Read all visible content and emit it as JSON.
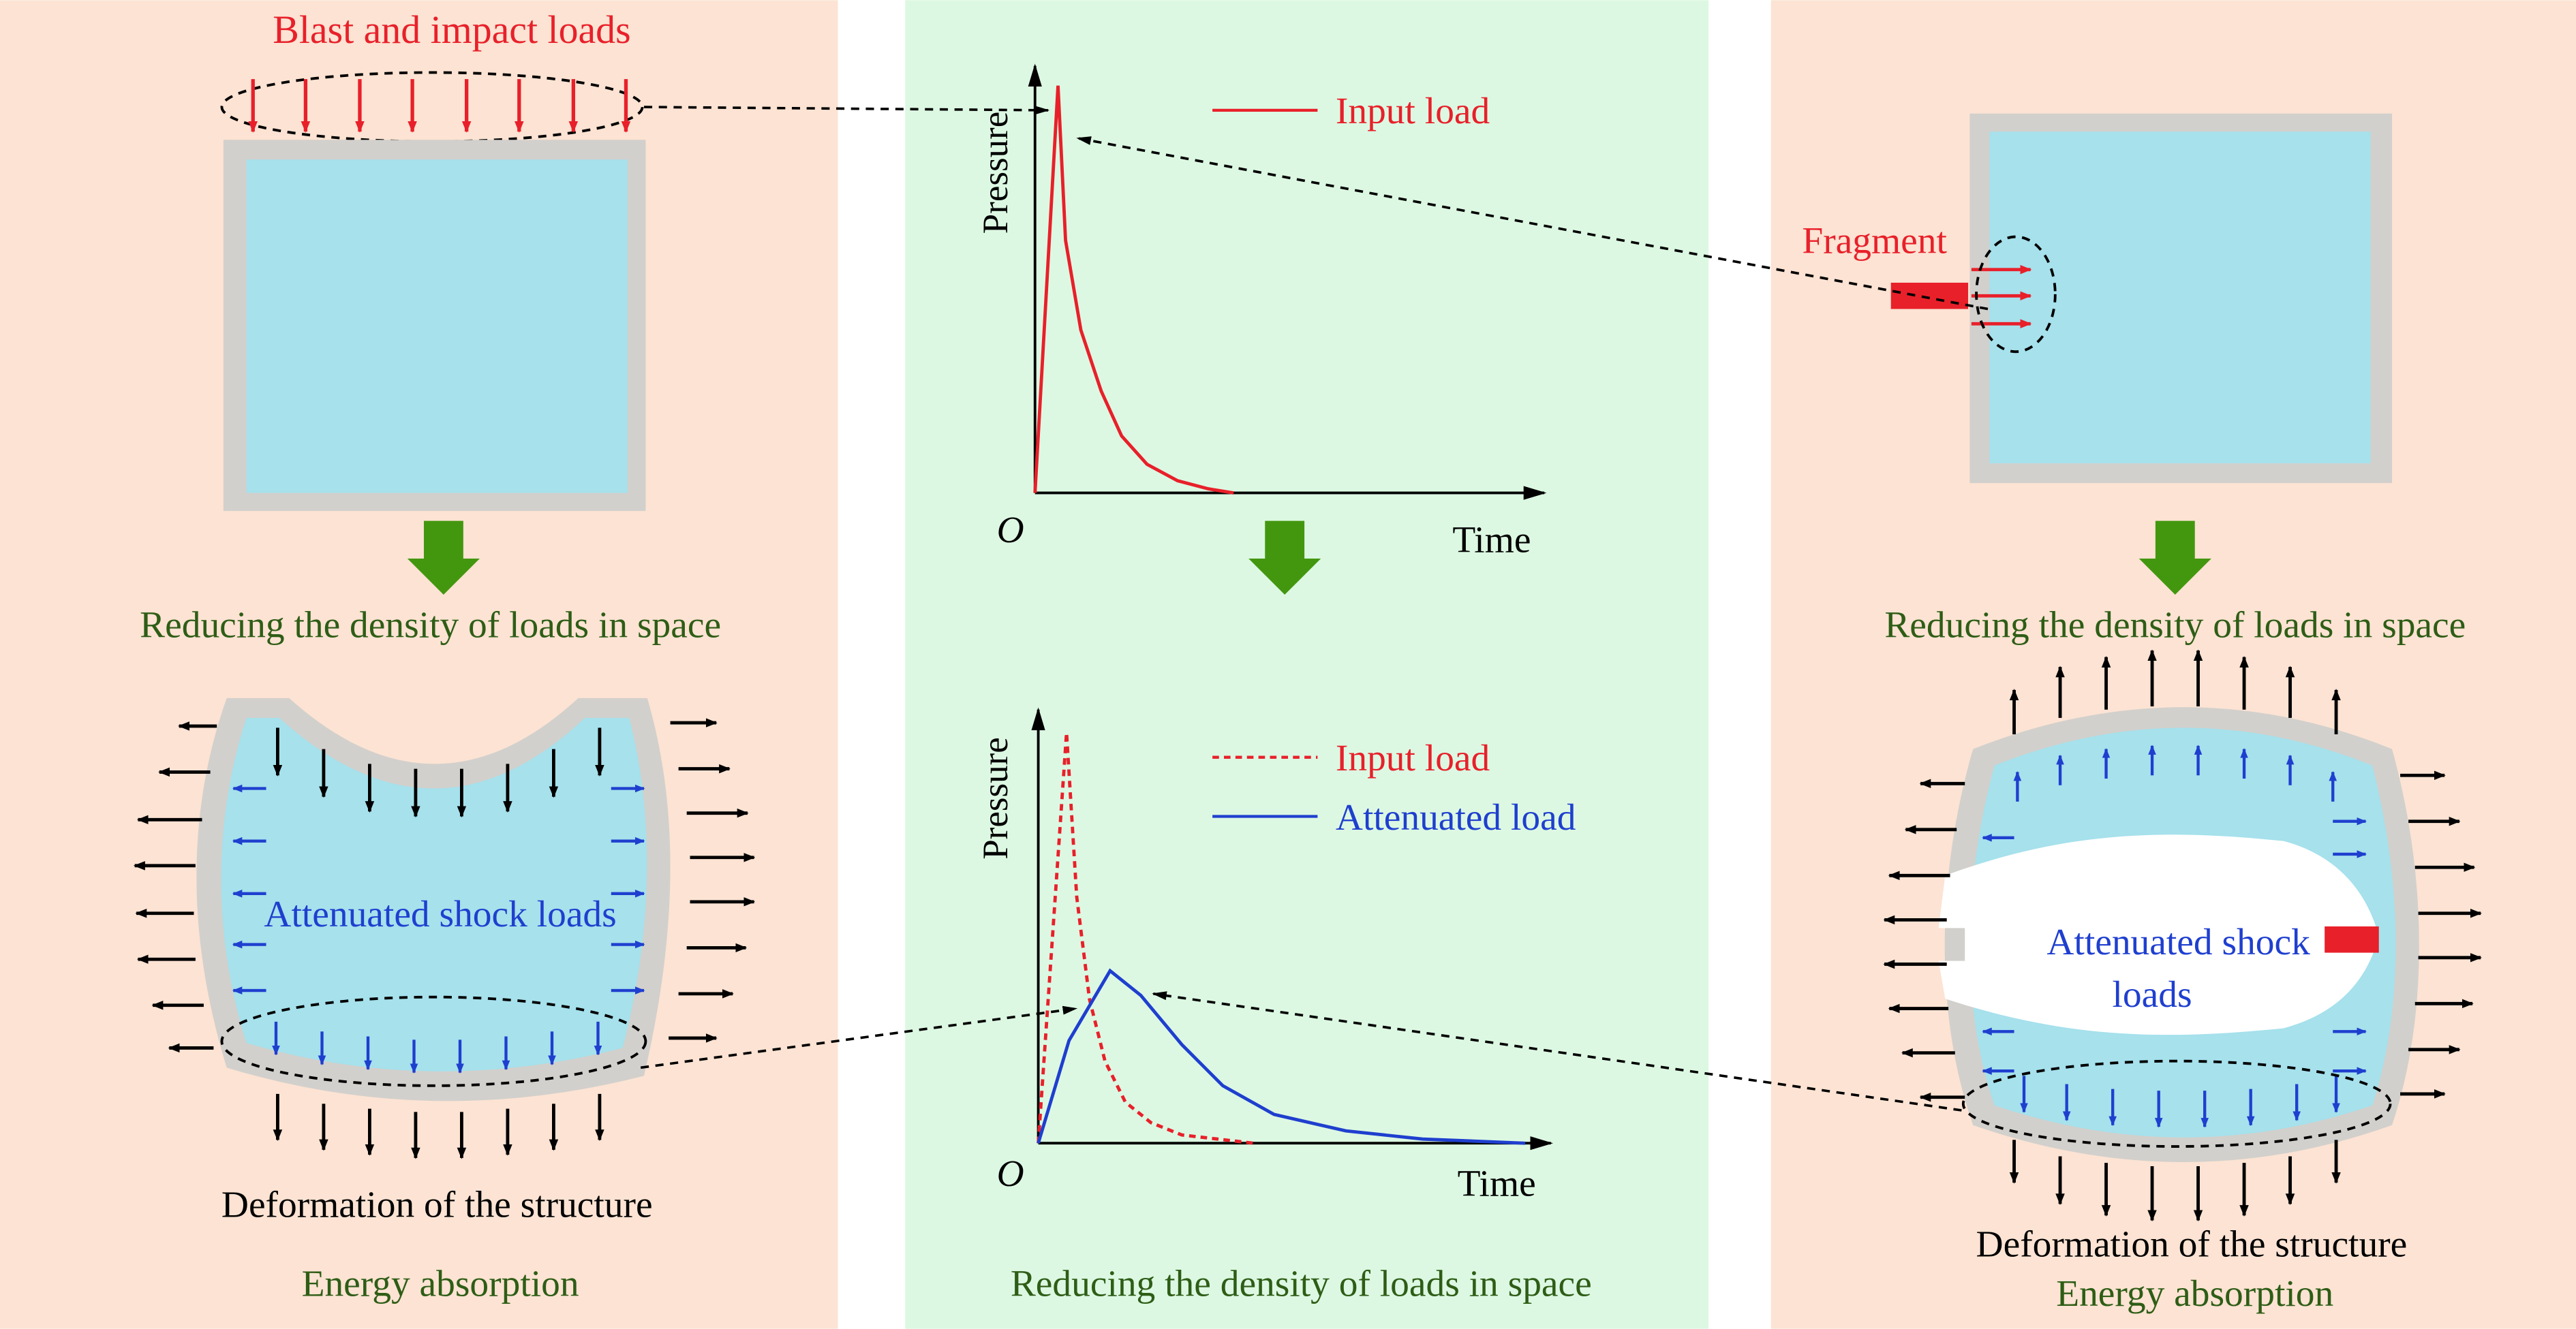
{
  "colors": {
    "panel_peach": "#fce3d3",
    "panel_green": "#dcf8e2",
    "water": "#a6e1ec",
    "wall": "#d2d0cc",
    "red": "#e8202a",
    "blue": "#1f3fcf",
    "green_arrow": "#43970f",
    "green_text": "#2e5d16"
  },
  "left": {
    "top_label": "Blast and impact loads",
    "reduce_label": "Reducing the density of loads in space",
    "attenuated_label": "Attenuated shock loads",
    "deformation_label": "Deformation of the structure",
    "energy_label": "Energy absorption"
  },
  "middle": {
    "chart1": {
      "ylabel": "Pressure",
      "xlabel": "Time",
      "origin": "O",
      "legend": [
        "Input load"
      ]
    },
    "chart2": {
      "ylabel": "Pressure",
      "xlabel": "Time",
      "origin": "O",
      "legend": [
        "Input load",
        "Attenuated load"
      ]
    },
    "bottom_label": "Reducing the density of loads in space"
  },
  "right": {
    "fragment_label": "Fragment",
    "reduce_label": "Reducing the density of loads in space",
    "attenuated_line1": "Attenuated shock",
    "attenuated_line2": "loads",
    "deformation_label": "Deformation of the structure",
    "energy_label": "Energy absorption"
  },
  "chart_data": [
    {
      "type": "line",
      "xlabel": "Time",
      "ylabel": "Pressure",
      "series": [
        {
          "name": "Input load",
          "style": "solid-red",
          "x": [
            0,
            0.045,
            0.06,
            0.09,
            0.13,
            0.17,
            0.22,
            0.28,
            0.34,
            0.39
          ],
          "y": [
            0,
            1.0,
            0.62,
            0.4,
            0.25,
            0.14,
            0.07,
            0.03,
            0.01,
            0.0
          ]
        }
      ]
    },
    {
      "type": "line",
      "xlabel": "Time",
      "ylabel": "Pressure",
      "series": [
        {
          "name": "Input load",
          "style": "dashed-red",
          "x": [
            0,
            0.055,
            0.075,
            0.1,
            0.13,
            0.17,
            0.22,
            0.28,
            0.42
          ],
          "y": [
            0,
            1.0,
            0.6,
            0.35,
            0.2,
            0.1,
            0.05,
            0.02,
            0.0
          ]
        },
        {
          "name": "Attenuated load",
          "style": "solid-blue",
          "x": [
            0,
            0.06,
            0.14,
            0.2,
            0.28,
            0.36,
            0.46,
            0.6,
            0.75,
            0.95
          ],
          "y": [
            0,
            0.25,
            0.42,
            0.36,
            0.24,
            0.14,
            0.07,
            0.03,
            0.01,
            0.0
          ]
        }
      ]
    }
  ]
}
